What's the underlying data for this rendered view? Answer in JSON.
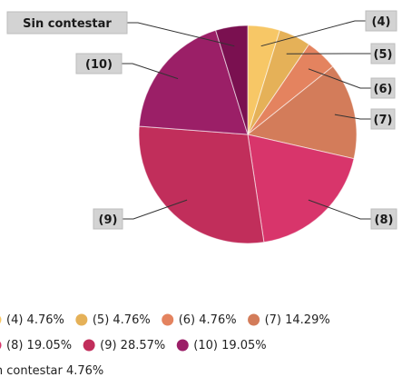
{
  "chart_data": {
    "type": "pie",
    "title": "",
    "start_angle_deg": 90,
    "direction": "clockwise",
    "slices": [
      {
        "label": "(4)",
        "value": 4.76,
        "percent_label": "4.76%",
        "color": "#f7c766"
      },
      {
        "label": "(5)",
        "value": 4.76,
        "percent_label": "4.76%",
        "color": "#e5b158"
      },
      {
        "label": "(6)",
        "value": 4.76,
        "percent_label": "4.76%",
        "color": "#e4835f"
      },
      {
        "label": "(7)",
        "value": 14.29,
        "percent_label": "14.29%",
        "color": "#d37c5a"
      },
      {
        "label": "(8)",
        "value": 19.05,
        "percent_label": "19.05%",
        "color": "#d8356b"
      },
      {
        "label": "(9)",
        "value": 28.57,
        "percent_label": "28.57%",
        "color": "#c12e5b"
      },
      {
        "label": "(10)",
        "value": 19.05,
        "percent_label": "19.05%",
        "color": "#9b1f67"
      },
      {
        "label": "Sin contestar",
        "value": 4.76,
        "percent_label": "4.76%",
        "color": "#7a1050"
      }
    ],
    "legend_placement": "bottom"
  }
}
